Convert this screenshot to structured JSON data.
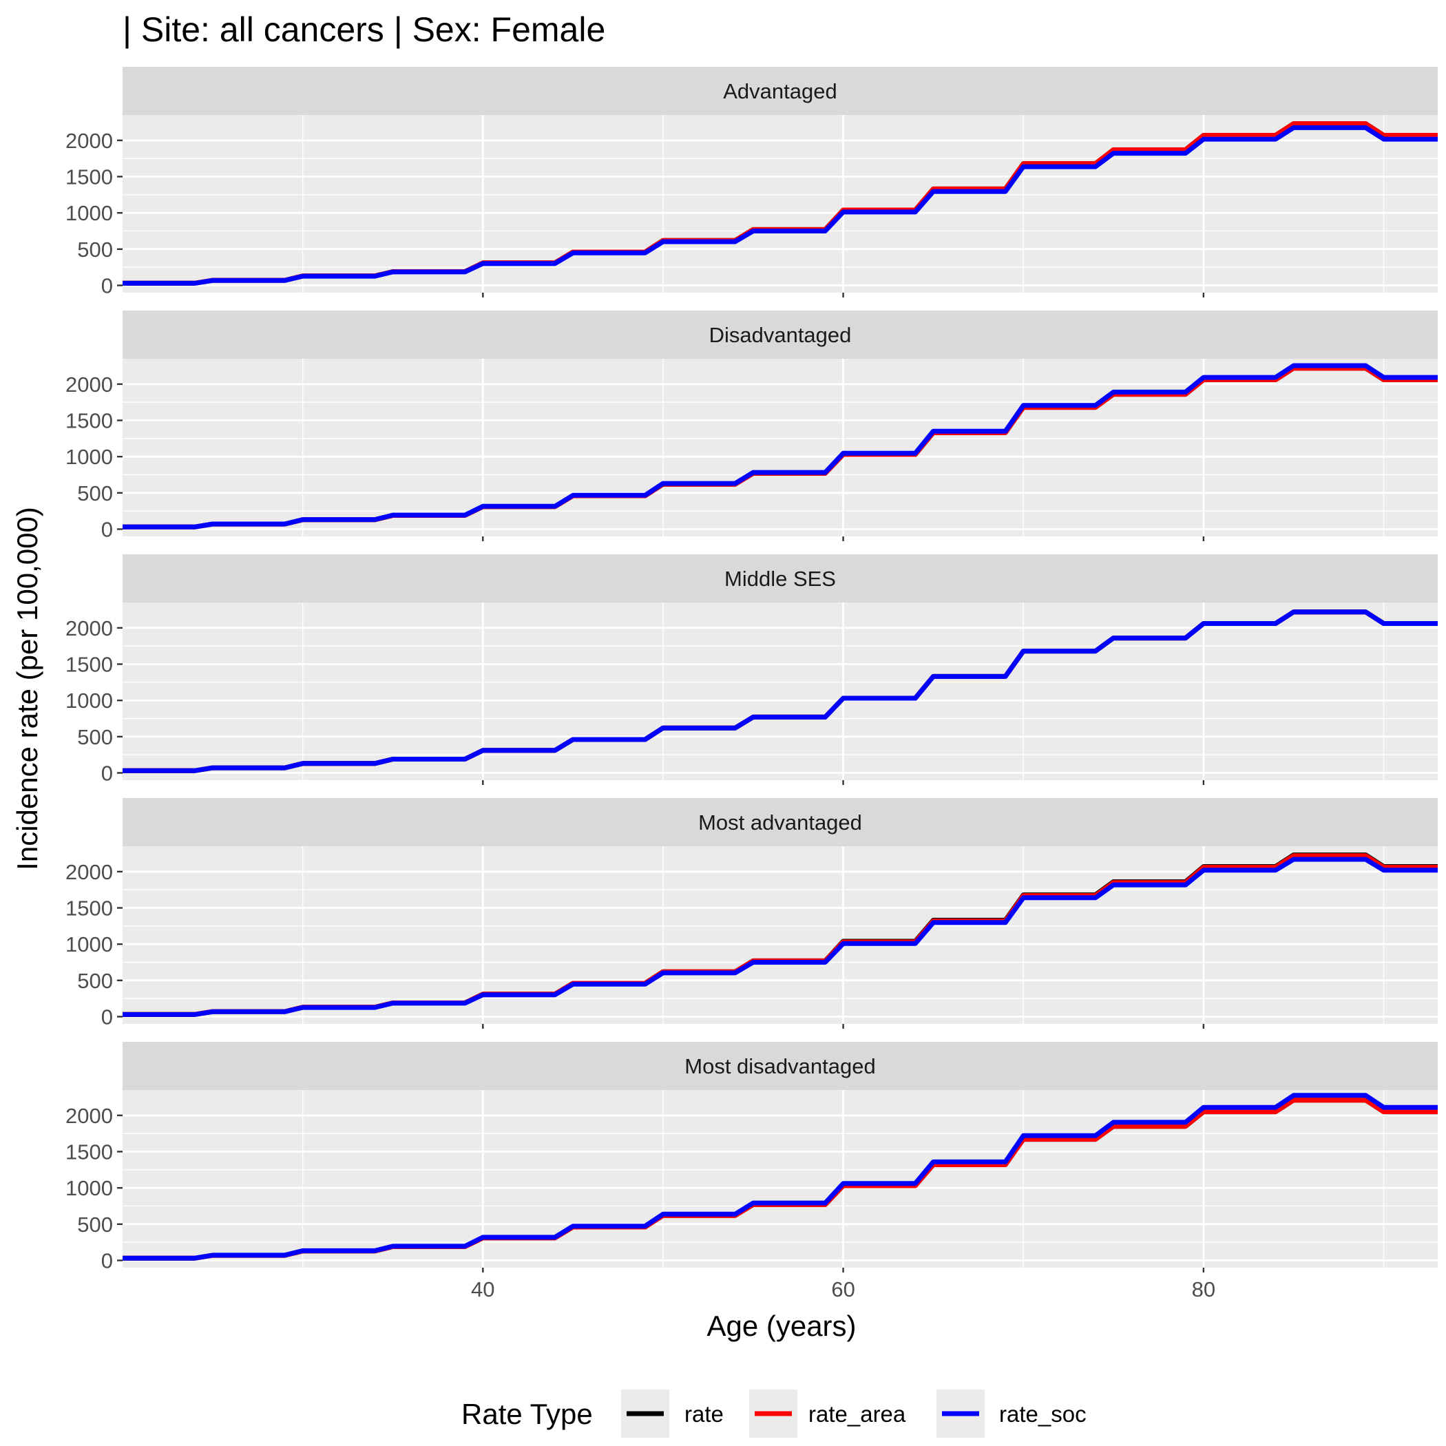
{
  "chart_data": {
    "type": "line",
    "title": "| Site: all cancers | Sex: Female",
    "xlabel": "Age (years)",
    "ylabel": "Incidence rate (per 100,000)",
    "xlim": [
      20,
      93
    ],
    "ylim": [
      -100,
      2350
    ],
    "x_ticks": [
      40,
      60,
      80
    ],
    "x_tick_labels": [
      "40",
      "60",
      "80"
    ],
    "y_ticks": [
      0,
      500,
      1000,
      1500,
      2000
    ],
    "y_tick_labels": [
      "0",
      "500",
      "1000",
      "1500",
      "2000"
    ],
    "grid": true,
    "legend_position": "bottom",
    "legend_title": "Rate Type",
    "legend": [
      {
        "name": "rate",
        "color": "#000000"
      },
      {
        "name": "rate_area",
        "color": "#ff0000"
      },
      {
        "name": "rate_soc",
        "color": "#0000ff"
      }
    ],
    "age_groups": [
      {
        "start": 20,
        "end": 24
      },
      {
        "start": 25,
        "end": 29
      },
      {
        "start": 30,
        "end": 34
      },
      {
        "start": 35,
        "end": 39
      },
      {
        "start": 40,
        "end": 44
      },
      {
        "start": 45,
        "end": 49
      },
      {
        "start": 50,
        "end": 54
      },
      {
        "start": 55,
        "end": 59
      },
      {
        "start": 60,
        "end": 64
      },
      {
        "start": 65,
        "end": 69
      },
      {
        "start": 70,
        "end": 74
      },
      {
        "start": 75,
        "end": 79
      },
      {
        "start": 80,
        "end": 84
      },
      {
        "start": 85,
        "end": 89
      },
      {
        "start": 90,
        "end": 93
      }
    ],
    "panels": [
      {
        "label": "Advantaged",
        "series": [
          {
            "name": "rate",
            "color": "#000000",
            "values": [
              30,
              70,
              130,
              190,
              310,
              460,
              620,
              770,
              1040,
              1330,
              1680,
              1870,
              2070,
              2230,
              2070
            ]
          },
          {
            "name": "rate_area",
            "color": "#ff0000",
            "values": [
              30,
              70,
              130,
              190,
              310,
              460,
              620,
              770,
              1040,
              1330,
              1680,
              1870,
              2070,
              2230,
              2070
            ]
          },
          {
            "name": "rate_soc",
            "color": "#0000ff",
            "values": [
              29,
              68,
              127,
              186,
              302,
              448,
              603,
              750,
              1012,
              1295,
              1637,
              1822,
              2017,
              2175,
              2017
            ]
          }
        ]
      },
      {
        "label": "Disadvantaged",
        "series": [
          {
            "name": "rate",
            "color": "#000000",
            "values": [
              30,
              70,
              130,
              190,
              310,
              460,
              620,
              770,
              1030,
              1330,
              1680,
              1860,
              2060,
              2220,
              2060
            ]
          },
          {
            "name": "rate_area",
            "color": "#ff0000",
            "values": [
              30,
              70,
              130,
              190,
              310,
              460,
              620,
              770,
              1030,
              1330,
              1680,
              1860,
              2060,
              2220,
              2060
            ]
          },
          {
            "name": "rate_soc",
            "color": "#0000ff",
            "values": [
              30,
              71,
              132,
              193,
              315,
              467,
              630,
              782,
              1046,
              1351,
              1707,
              1890,
              2093,
              2255,
              2093
            ]
          }
        ]
      },
      {
        "label": "Middle SES",
        "series": [
          {
            "name": "rate",
            "color": "#000000",
            "values": [
              30,
              70,
              130,
              190,
              310,
              460,
              620,
              770,
              1030,
              1330,
              1680,
              1860,
              2060,
              2220,
              2060
            ]
          },
          {
            "name": "rate_area",
            "color": "#ff0000",
            "values": [
              30,
              70,
              130,
              190,
              310,
              460,
              620,
              770,
              1030,
              1330,
              1680,
              1860,
              2060,
              2220,
              2060
            ]
          },
          {
            "name": "rate_soc",
            "color": "#0000ff",
            "values": [
              30,
              70,
              130,
              190,
              310,
              460,
              620,
              770,
              1030,
              1330,
              1680,
              1860,
              2060,
              2220,
              2060
            ]
          }
        ]
      },
      {
        "label": "Most advantaged",
        "series": [
          {
            "name": "rate",
            "color": "#000000",
            "values": [
              30,
              70,
              130,
              190,
              310,
              460,
              620,
              770,
              1040,
              1330,
              1680,
              1860,
              2070,
              2230,
              2070
            ]
          },
          {
            "name": "rate_area",
            "color": "#ff0000",
            "values": [
              30,
              70,
              130,
              190,
              310,
              460,
              620,
              770,
              1030,
              1320,
              1670,
              1850,
              2060,
              2220,
              2060
            ]
          },
          {
            "name": "rate_soc",
            "color": "#0000ff",
            "values": [
              29,
              68,
              127,
              186,
              302,
              448,
              604,
              750,
              1008,
              1298,
              1640,
              1817,
              2020,
              2170,
              2020
            ]
          }
        ]
      },
      {
        "label": "Most disadvantaged",
        "series": [
          {
            "name": "rate",
            "color": "#000000",
            "values": [
              30,
              70,
              130,
              190,
              310,
              460,
              620,
              770,
              1030,
              1320,
              1670,
              1850,
              2050,
              2210,
              2050
            ]
          },
          {
            "name": "rate_area",
            "color": "#ff0000",
            "values": [
              30,
              70,
              130,
              190,
              310,
              460,
              620,
              770,
              1030,
              1320,
              1670,
              1850,
              2050,
              2210,
              2050
            ]
          },
          {
            "name": "rate_soc",
            "color": "#0000ff",
            "values": [
              31,
              72,
              134,
              195,
              319,
              473,
              638,
              792,
              1061,
              1359,
              1720,
              1905,
              2111,
              2276,
              2111
            ]
          }
        ]
      }
    ]
  }
}
